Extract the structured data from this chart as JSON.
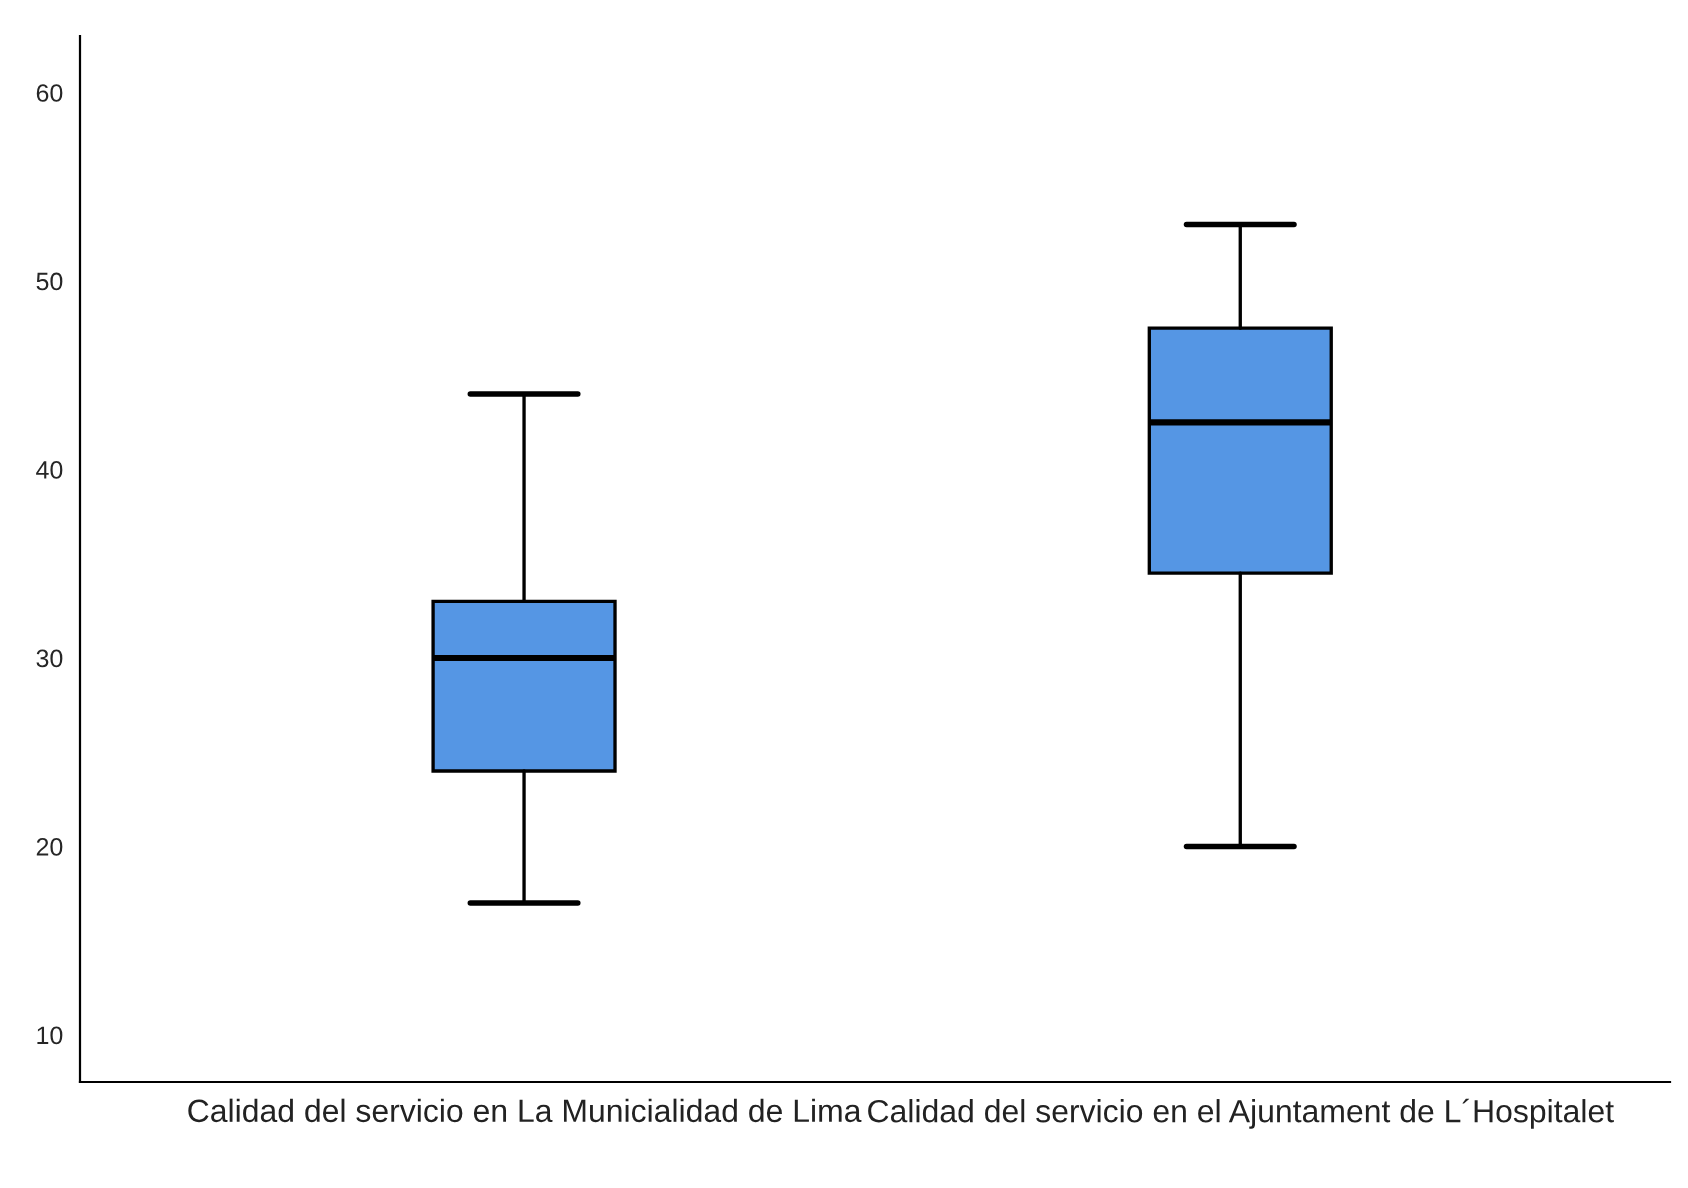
{
  "chart_data": {
    "type": "box",
    "categories": [
      "Calidad del servicio en La Municialidad de Lima",
      "Calidad del servicio en el Ajuntament de L´Hospitalet"
    ],
    "boxes": [
      {
        "low": 17,
        "q1": 24,
        "median": 30,
        "q3": 33,
        "high": 44
      },
      {
        "low": 20,
        "q1": 34.5,
        "median": 42.5,
        "q3": 47.5,
        "high": 53
      }
    ],
    "color": "#5596e4",
    "ylim": [
      7.5,
      63
    ],
    "yticks": [
      10,
      20,
      30,
      40,
      50,
      60
    ],
    "grid": false
  }
}
